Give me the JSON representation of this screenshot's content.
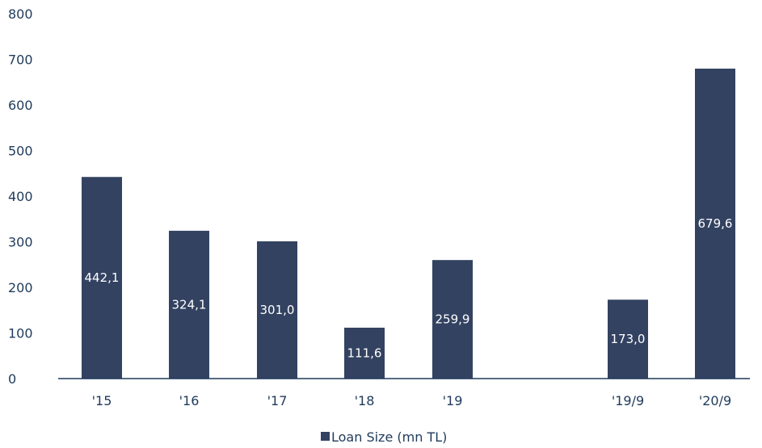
{
  "chart_data": {
    "type": "bar",
    "categories": [
      "'15",
      "'16",
      "'17",
      "'18",
      "'19",
      "'19/9",
      "'20/9"
    ],
    "series": [
      {
        "name": "Loan Size (mn TL)",
        "values": [
          442.1,
          324.1,
          301.0,
          111.6,
          259.9,
          173.0,
          679.6
        ],
        "data_labels": [
          "442,1",
          "324,1",
          "301,0",
          "111,6",
          "259,9",
          "173,0",
          "679,6"
        ],
        "color": "#334261"
      }
    ],
    "yticks": [
      "0",
      "100",
      "200",
      "300",
      "400",
      "500",
      "600",
      "700",
      "800"
    ],
    "ylim": [
      0,
      800
    ],
    "grid": false,
    "legend_position": "bottom",
    "title": "",
    "xlabel": "",
    "ylabel": ""
  }
}
